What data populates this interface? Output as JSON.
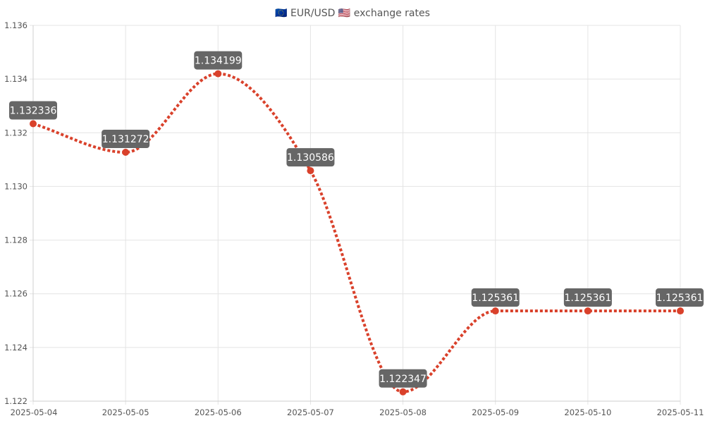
{
  "chart_data": {
    "type": "line",
    "title": "🇪🇺 EUR/USD 🇺🇸 exchange rates",
    "categories": [
      "2025-05-04",
      "2025-05-05",
      "2025-05-06",
      "2025-05-07",
      "2025-05-08",
      "2025-05-09",
      "2025-05-10",
      "2025-05-11"
    ],
    "series": [
      {
        "values": [
          1.132336,
          1.131272,
          1.134199,
          1.130586,
          1.122347,
          1.125361,
          1.125361,
          1.125361
        ],
        "labels": [
          "1.132336",
          "1.131272",
          "1.134199",
          "1.130586",
          "1.122347",
          "1.125361",
          "1.125361",
          "1.125361"
        ],
        "color": "#d9412b"
      }
    ],
    "yticks": [
      "1.122",
      "1.124",
      "1.126",
      "1.128",
      "1.130",
      "1.132",
      "1.134",
      "1.136"
    ],
    "ylim": [
      1.122,
      1.136
    ],
    "grid": true,
    "line_style": "dotted",
    "smooth": true,
    "label_box_color": "#666666",
    "grid_color": "#e4e4e4"
  }
}
